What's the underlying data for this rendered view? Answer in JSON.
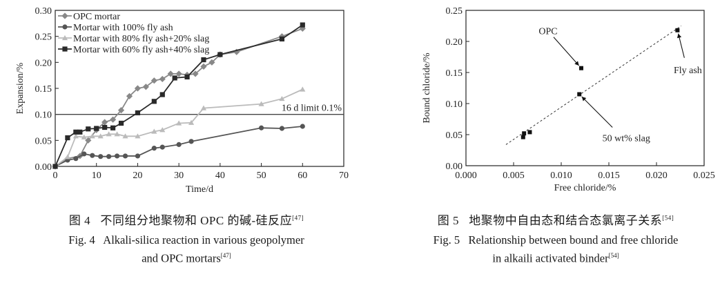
{
  "chart_data": [
    {
      "type": "line",
      "title": "",
      "xlabel": "Time/d",
      "ylabel": "Expansion/%",
      "xlim": [
        0,
        70
      ],
      "ylim": [
        0,
        0.3
      ],
      "xticks": [
        0,
        10,
        20,
        30,
        40,
        50,
        60,
        70
      ],
      "yticks": [
        0.0,
        0.05,
        0.1,
        0.15,
        0.2,
        0.25,
        0.3
      ],
      "xtick_labels": [
        "0",
        "10",
        "20",
        "30",
        "40",
        "50",
        "60",
        "70"
      ],
      "ytick_labels": [
        "0.00",
        "0.05",
        "0.10",
        "0.15",
        "0.20",
        "0.25",
        "0.30"
      ],
      "legend_position": "top-left",
      "series": [
        {
          "name": "OPC mortar",
          "marker": "diamond",
          "color": "#888888",
          "x": [
            0,
            3,
            6,
            8,
            10,
            12,
            14,
            16,
            18,
            20,
            22,
            24,
            26,
            28,
            30,
            32,
            34,
            36,
            38,
            40,
            44,
            55,
            60
          ],
          "y": [
            0.0,
            0.015,
            0.02,
            0.05,
            0.07,
            0.085,
            0.09,
            0.108,
            0.135,
            0.15,
            0.153,
            0.165,
            0.168,
            0.178,
            0.178,
            0.176,
            0.178,
            0.192,
            0.2,
            0.215,
            0.22,
            0.25,
            0.265
          ]
        },
        {
          "name": "Mortar with 100% fly ash",
          "marker": "circle",
          "color": "#555555",
          "x": [
            0,
            3,
            5,
            7,
            9,
            11,
            13,
            15,
            17,
            20,
            24,
            26,
            30,
            33,
            50,
            55,
            60
          ],
          "y": [
            0.0,
            0.012,
            0.015,
            0.024,
            0.021,
            0.019,
            0.019,
            0.02,
            0.02,
            0.02,
            0.035,
            0.037,
            0.042,
            0.048,
            0.074,
            0.073,
            0.077
          ]
        },
        {
          "name": "Mortar with 80% fly ash+20% slag",
          "marker": "triangle",
          "color": "#bbbbbb",
          "x": [
            0,
            3,
            5,
            7,
            9,
            11,
            13,
            15,
            17,
            20,
            24,
            26,
            30,
            33,
            36,
            50,
            55,
            60
          ],
          "y": [
            0.0,
            0.018,
            0.058,
            0.056,
            0.058,
            0.058,
            0.062,
            0.062,
            0.058,
            0.058,
            0.067,
            0.07,
            0.083,
            0.084,
            0.112,
            0.12,
            0.13,
            0.148
          ]
        },
        {
          "name": "Mortar with 60% fly ash+40% slag",
          "marker": "square",
          "color": "#2a2a2a",
          "x": [
            0,
            3,
            5,
            6,
            8,
            10,
            12,
            14,
            16,
            20,
            24,
            26,
            29,
            32,
            36,
            40,
            55,
            60
          ],
          "y": [
            0.0,
            0.055,
            0.066,
            0.066,
            0.072,
            0.073,
            0.075,
            0.074,
            0.083,
            0.103,
            0.125,
            0.138,
            0.17,
            0.172,
            0.205,
            0.215,
            0.245,
            0.272
          ]
        }
      ],
      "reference_lines": [
        {
          "y": 0.1,
          "label": "16 d limit 0.1%"
        }
      ]
    },
    {
      "type": "scatter",
      "title": "",
      "xlabel": "Free chloride/%",
      "ylabel": "Bound chloride/%",
      "xlim": [
        0.0,
        0.025
      ],
      "ylim": [
        0.0,
        0.25
      ],
      "xticks": [
        0.0,
        0.005,
        0.01,
        0.015,
        0.02,
        0.025
      ],
      "yticks": [
        0.0,
        0.05,
        0.1,
        0.15,
        0.2,
        0.25
      ],
      "xtick_labels": [
        "0.000",
        "0.005",
        "0.010",
        "0.015",
        "0.020",
        "0.025"
      ],
      "ytick_labels": [
        "0.00",
        "0.05",
        "0.10",
        "0.15",
        "0.20",
        "0.25"
      ],
      "points": [
        {
          "x": 0.006,
          "y": 0.046
        },
        {
          "x": 0.0061,
          "y": 0.052
        },
        {
          "x": 0.0067,
          "y": 0.054
        },
        {
          "x": 0.0119,
          "y": 0.115
        },
        {
          "x": 0.0121,
          "y": 0.157
        },
        {
          "x": 0.0222,
          "y": 0.218
        }
      ],
      "trend_line": {
        "x": [
          0.0042,
          0.0226
        ],
        "y": [
          0.034,
          0.225
        ]
      },
      "annotations": [
        {
          "text": "OPC",
          "target_x": 0.0121,
          "target_y": 0.157
        },
        {
          "text": "Fly ash",
          "target_x": 0.0222,
          "target_y": 0.218
        },
        {
          "text": "50 wt% slag",
          "target_x": 0.0119,
          "target_y": 0.115
        }
      ]
    }
  ],
  "captions": {
    "fig4": {
      "cn_label": "图 4",
      "cn_text": "不同组分地聚物和 OPC 的碱-硅反应",
      "cn_ref": "[47]",
      "en_label": "Fig. 4",
      "en_line1": "Alkali-silica reaction in various geopolymer",
      "en_line2": "and OPC mortars",
      "en_ref": "[47]"
    },
    "fig5": {
      "cn_label": "图 5",
      "cn_text": "地聚物中自由态和结合态氯离子关系",
      "cn_ref": "[54]",
      "en_label": "Fig. 5",
      "en_line1": "Relationship between bound and free chloride",
      "en_line2": "in alkaili activated binder",
      "en_ref": "[54]"
    }
  }
}
